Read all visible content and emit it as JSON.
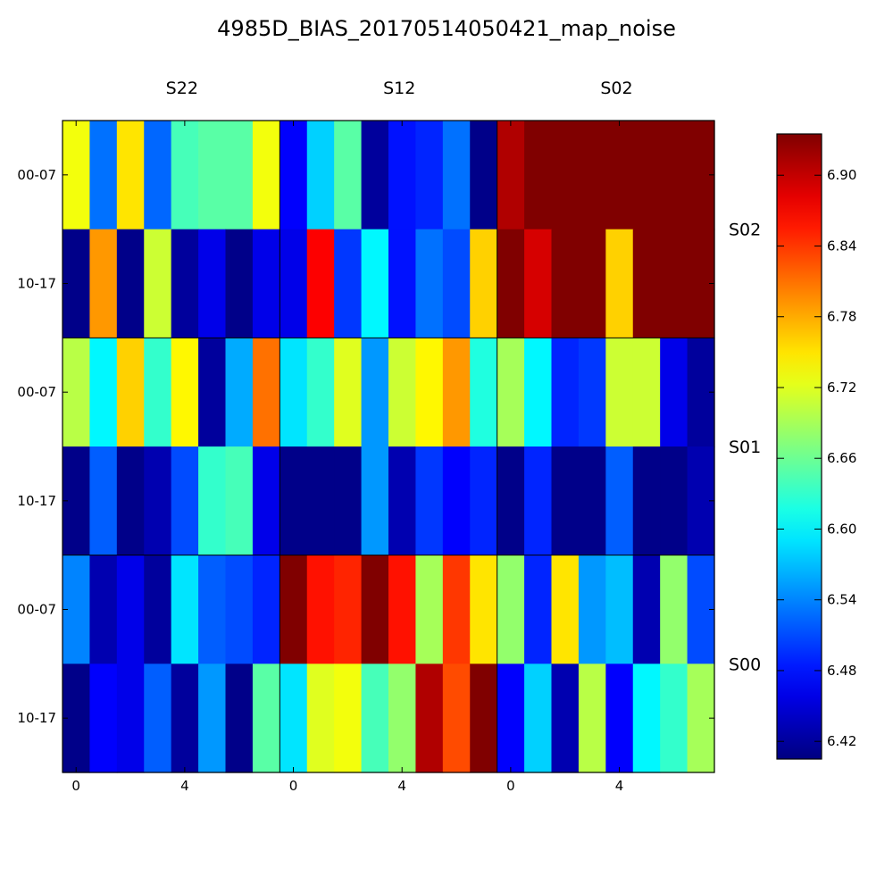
{
  "chart_data": {
    "type": "heatmap",
    "title": "4985D_BIAS_20170514050421_map_noise",
    "column_groups": [
      "S22",
      "S12",
      "S02"
    ],
    "row_groups": [
      "S02",
      "S01",
      "S00"
    ],
    "row_labels": [
      "00-07",
      "10-17",
      "00-07",
      "10-17",
      "00-07",
      "10-17"
    ],
    "x_tick_labels": [
      "0",
      "4"
    ],
    "x_tick_positions": [
      0,
      4
    ],
    "colorbar": {
      "colormap": "jet",
      "min": 6.405,
      "max": 6.935,
      "ticks": [
        6.42,
        6.48,
        6.54,
        6.6,
        6.66,
        6.72,
        6.78,
        6.84,
        6.9
      ],
      "tick_labels": [
        "6.42",
        "6.48",
        "6.54",
        "6.60",
        "6.66",
        "6.72",
        "6.78",
        "6.84",
        "6.90"
      ]
    },
    "values": [
      [
        6.73,
        6.53,
        6.75,
        6.525,
        6.64,
        6.65,
        6.65,
        6.73,
        6.47,
        6.58,
        6.65,
        6.42,
        6.48,
        6.49,
        6.53,
        6.41,
        6.91,
        6.935,
        6.935,
        6.935,
        6.935,
        6.935,
        6.935,
        6.935
      ],
      [
        6.41,
        6.79,
        6.41,
        6.71,
        6.42,
        6.46,
        6.41,
        6.46,
        6.46,
        6.87,
        6.5,
        6.6,
        6.48,
        6.53,
        6.51,
        6.76,
        6.935,
        6.89,
        6.935,
        6.935,
        6.76,
        6.935,
        6.935,
        6.935
      ],
      [
        6.7,
        6.6,
        6.76,
        6.63,
        6.74,
        6.42,
        6.56,
        6.81,
        6.59,
        6.63,
        6.72,
        6.55,
        6.71,
        6.74,
        6.79,
        6.62,
        6.69,
        6.6,
        6.49,
        6.5,
        6.71,
        6.71,
        6.46,
        6.42
      ],
      [
        6.41,
        6.52,
        6.41,
        6.43,
        6.51,
        6.63,
        6.64,
        6.46,
        6.41,
        6.41,
        6.41,
        6.55,
        6.43,
        6.5,
        6.47,
        6.49,
        6.41,
        6.49,
        6.41,
        6.41,
        6.52,
        6.41,
        6.41,
        6.43
      ],
      [
        6.54,
        6.43,
        6.46,
        6.42,
        6.59,
        6.52,
        6.51,
        6.49,
        6.935,
        6.86,
        6.85,
        6.935,
        6.86,
        6.69,
        6.84,
        6.75,
        6.68,
        6.49,
        6.75,
        6.55,
        6.57,
        6.43,
        6.68,
        6.51
      ],
      [
        6.41,
        6.47,
        6.46,
        6.52,
        6.42,
        6.55,
        6.41,
        6.65,
        6.59,
        6.72,
        6.73,
        6.64,
        6.68,
        6.91,
        6.83,
        6.935,
        6.47,
        6.58,
        6.43,
        6.7,
        6.47,
        6.6,
        6.63,
        6.69
      ]
    ]
  }
}
